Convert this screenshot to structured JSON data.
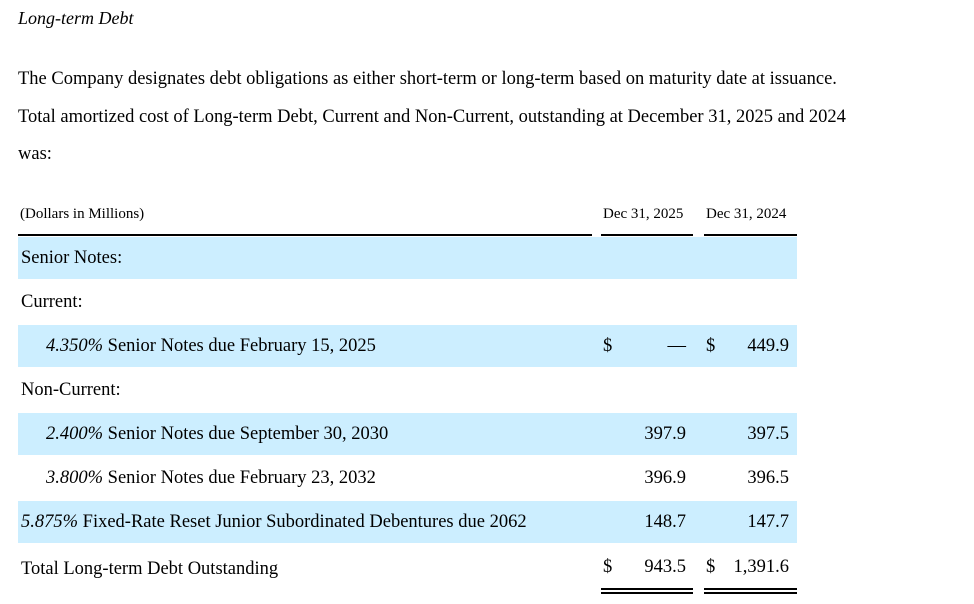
{
  "section_title": "Long-term Debt",
  "paragraph": [
    "The Company designates debt obligations as either short-term or long-term based on maturity date at issuance.",
    "Total amortized cost of Long-term Debt, Current and Non-Current, outstanding at December 31, 2025 and 2024",
    "was:"
  ],
  "table": {
    "unit_label": "(Dollars in Millions)",
    "col1": "Dec 31, 2025",
    "col2": "Dec 31, 2024",
    "dollar": "$",
    "rows": [
      {
        "label": "Senior Notes:"
      },
      {
        "label": "Current:"
      },
      {
        "rate": "4.350%",
        "label": " Senior Notes due February 15, 2025",
        "v1": "—",
        "v2": "449.9"
      },
      {
        "label": "Non-Current:"
      },
      {
        "rate": "2.400%",
        "label": " Senior Notes due September 30, 2030",
        "v1": "397.9",
        "v2": "397.5"
      },
      {
        "rate": "3.800%",
        "label": " Senior Notes due February 23, 2032",
        "v1": "396.9",
        "v2": "396.5"
      },
      {
        "rate": "5.875%",
        "label": " Fixed-Rate Reset Junior Subordinated Debentures due 2062",
        "v1": "148.7",
        "v2": "147.7"
      }
    ],
    "total": {
      "label": "Total Long-term Debt Outstanding",
      "v1": "943.5",
      "v2": "1,391.6"
    }
  }
}
